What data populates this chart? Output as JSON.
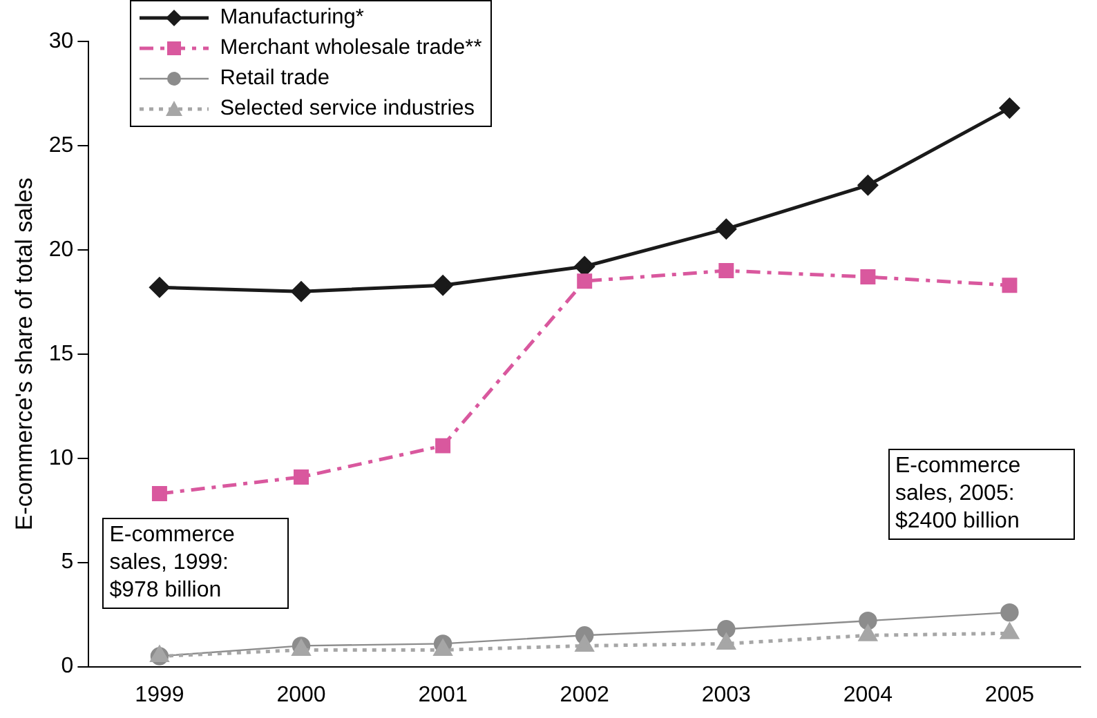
{
  "chart_data": {
    "type": "line",
    "ylabel": "E-commerce's share of total sales",
    "categories": [
      "1999",
      "2000",
      "2001",
      "2002",
      "2003",
      "2004",
      "2005"
    ],
    "series": [
      {
        "name": "Manufacturing*",
        "color": "#1a1a1a",
        "marker": "diamond",
        "line_style": "solid",
        "values": [
          18.2,
          18.0,
          18.3,
          19.2,
          21.0,
          23.1,
          26.8
        ]
      },
      {
        "name": "Merchant wholesale trade**",
        "color": "#d9589e",
        "marker": "square",
        "line_style": "dashdot",
        "values": [
          8.3,
          9.1,
          10.6,
          18.5,
          19.0,
          18.7,
          18.3
        ]
      },
      {
        "name": "Retail trade",
        "color": "#8c8c8c",
        "marker": "circle",
        "line_style": "solid",
        "values": [
          0.5,
          1.0,
          1.1,
          1.5,
          1.8,
          2.2,
          2.6
        ]
      },
      {
        "name": "Selected service industries",
        "color": "#a6a6a6",
        "marker": "triangle",
        "line_style": "dotted",
        "values": [
          0.5,
          0.8,
          0.8,
          1.0,
          1.1,
          1.5,
          1.6
        ]
      }
    ],
    "ylim": [
      0,
      30
    ],
    "yticks": [
      0,
      5,
      10,
      15,
      20,
      25,
      30
    ],
    "grid": false,
    "legend": "top left",
    "annotations": [
      "E-commerce sales, 1999: $978 billion",
      "E-commerce sales, 2005: $2400 billion"
    ]
  }
}
